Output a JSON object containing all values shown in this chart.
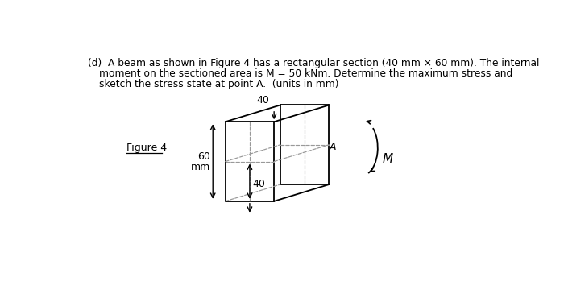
{
  "text_line1": "(d)  A beam as shown in Figure 4 has a rectangular section (40 mm × 60 mm). The internal",
  "text_line2": "moment on the sectioned area is M = 50 kNm. Determine the maximum stress and",
  "text_line3": "sketch the stress state at point A.  (units in mm)",
  "figure_label": "Figure 4",
  "dim_top": "40",
  "dim_left": "60",
  "dim_left2": "mm",
  "dim_bottom": "40",
  "label_A": "A",
  "label_M": "M",
  "bg_color": "#ffffff",
  "line_color": "#000000"
}
